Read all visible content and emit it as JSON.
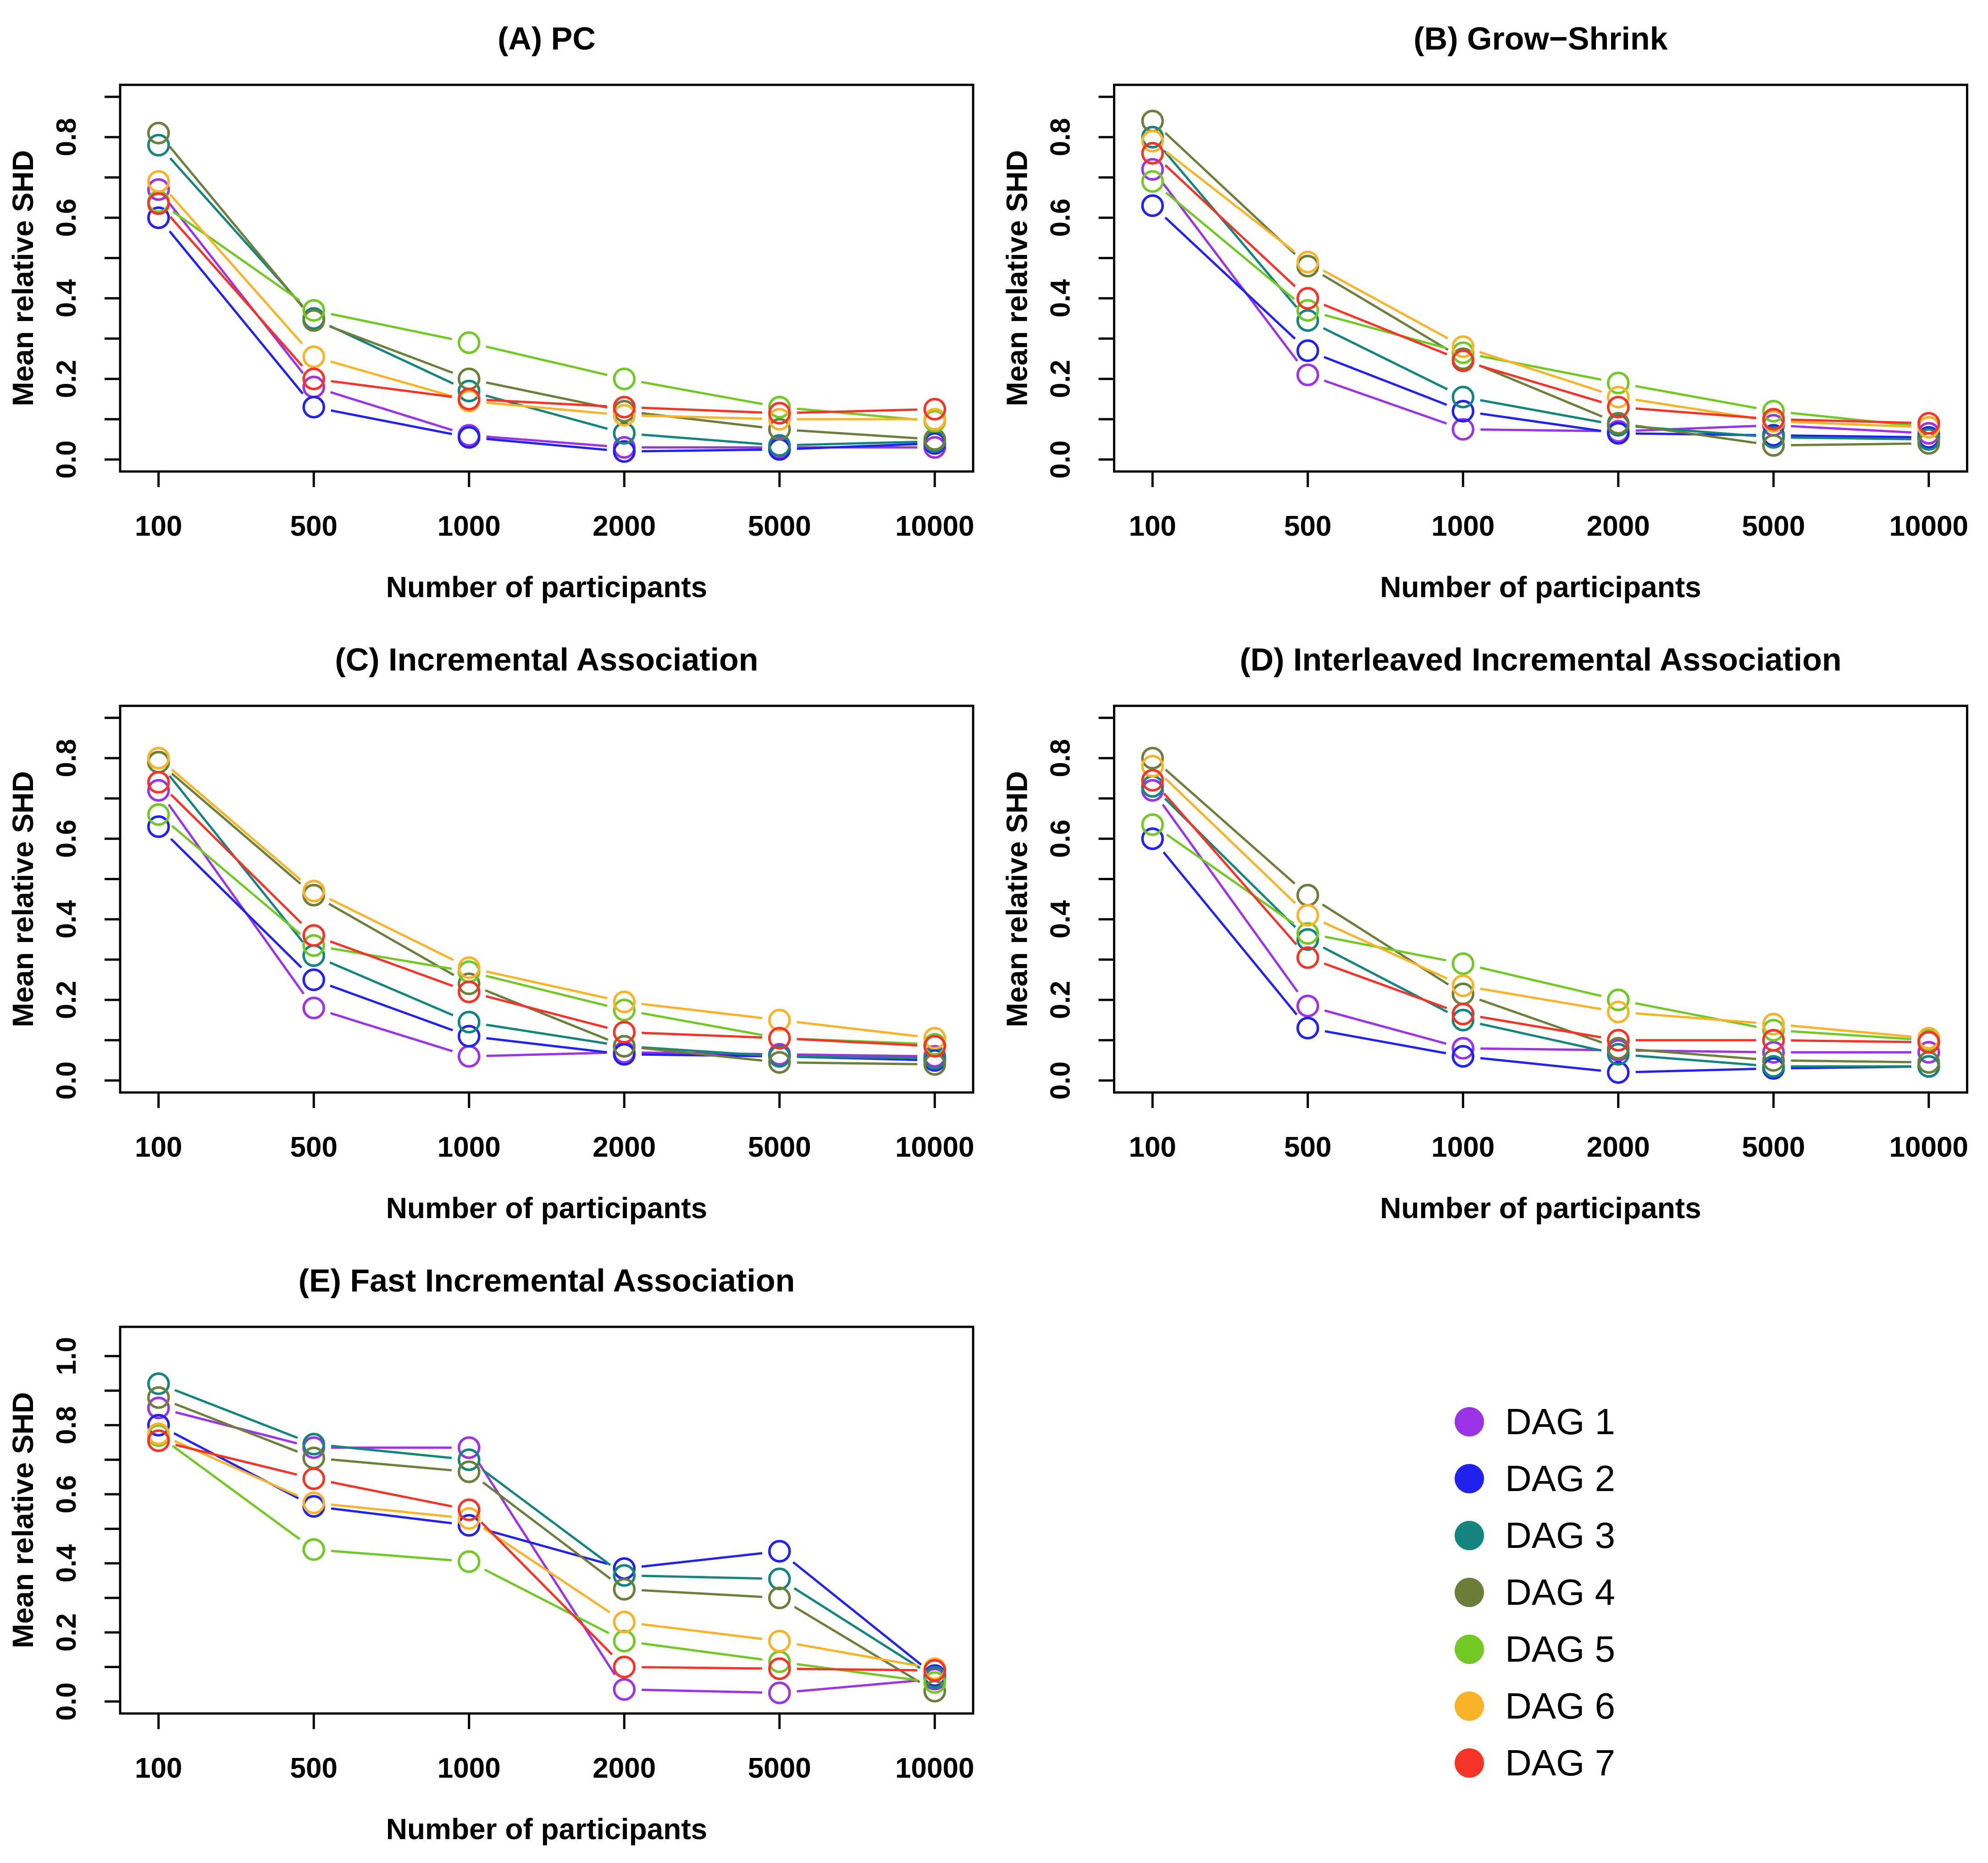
{
  "figure": {
    "xlabel": "Number of participants",
    "ylabel": "Mean relative SHD",
    "x_categories": [
      "100",
      "500",
      "1000",
      "2000",
      "5000",
      "10000"
    ],
    "legend": {
      "position": "bottom-right-cell",
      "entries": [
        {
          "label": "DAG 1",
          "color": "#9C33E6"
        },
        {
          "label": "DAG 2",
          "color": "#2222EE"
        },
        {
          "label": "DAG 3",
          "color": "#13847E"
        },
        {
          "label": "DAG 4",
          "color": "#6B7F3B"
        },
        {
          "label": "DAG 5",
          "color": "#72C926"
        },
        {
          "label": "DAG 6",
          "color": "#F9B32A"
        },
        {
          "label": "DAG 7",
          "color": "#F53427"
        }
      ]
    }
  },
  "chart_data": [
    {
      "type": "line",
      "panel": "A",
      "title": "(A) PC",
      "xlabel": "Number of participants",
      "ylabel": "Mean relative SHD",
      "categories": [
        "100",
        "500",
        "1000",
        "2000",
        "5000",
        "10000"
      ],
      "ylim": [
        0,
        0.9
      ],
      "yticks": [
        0.0,
        0.2,
        0.4,
        0.6,
        0.8
      ],
      "grid": false,
      "marker": "open-circle",
      "series": [
        {
          "name": "DAG 1",
          "color": "#9C33E6",
          "values": [
            0.67,
            0.18,
            0.06,
            0.03,
            0.03,
            0.03
          ]
        },
        {
          "name": "DAG 2",
          "color": "#2222EE",
          "values": [
            0.6,
            0.13,
            0.055,
            0.02,
            0.025,
            0.04
          ]
        },
        {
          "name": "DAG 3",
          "color": "#13847E",
          "values": [
            0.78,
            0.35,
            0.17,
            0.065,
            0.035,
            0.045
          ]
        },
        {
          "name": "DAG 4",
          "color": "#6B7F3B",
          "values": [
            0.81,
            0.345,
            0.2,
            0.12,
            0.075,
            0.05
          ]
        },
        {
          "name": "DAG 5",
          "color": "#72C926",
          "values": [
            0.64,
            0.37,
            0.29,
            0.2,
            0.13,
            0.095
          ]
        },
        {
          "name": "DAG 6",
          "color": "#F9B32A",
          "values": [
            0.69,
            0.255,
            0.145,
            0.11,
            0.1,
            0.1
          ]
        },
        {
          "name": "DAG 7",
          "color": "#F53427",
          "values": [
            0.635,
            0.2,
            0.15,
            0.13,
            0.115,
            0.125
          ]
        }
      ]
    },
    {
      "type": "line",
      "panel": "B",
      "title": "(B) Grow−Shrink",
      "xlabel": "Number of participants",
      "ylabel": "Mean relative SHD",
      "categories": [
        "100",
        "500",
        "1000",
        "2000",
        "5000",
        "10000"
      ],
      "ylim": [
        0,
        0.9
      ],
      "yticks": [
        0.0,
        0.2,
        0.4,
        0.6,
        0.8
      ],
      "grid": false,
      "marker": "open-circle",
      "series": [
        {
          "name": "DAG 1",
          "color": "#9C33E6",
          "values": [
            0.72,
            0.21,
            0.075,
            0.07,
            0.085,
            0.065
          ]
        },
        {
          "name": "DAG 2",
          "color": "#2222EE",
          "values": [
            0.63,
            0.27,
            0.12,
            0.065,
            0.06,
            0.055
          ]
        },
        {
          "name": "DAG 3",
          "color": "#13847E",
          "values": [
            0.8,
            0.345,
            0.155,
            0.085,
            0.055,
            0.05
          ]
        },
        {
          "name": "DAG 4",
          "color": "#6B7F3B",
          "values": [
            0.84,
            0.48,
            0.25,
            0.09,
            0.035,
            0.04
          ]
        },
        {
          "name": "DAG 5",
          "color": "#72C926",
          "values": [
            0.69,
            0.37,
            0.265,
            0.19,
            0.12,
            0.08
          ]
        },
        {
          "name": "DAG 6",
          "color": "#F9B32A",
          "values": [
            0.79,
            0.49,
            0.28,
            0.155,
            0.095,
            0.08
          ]
        },
        {
          "name": "DAG 7",
          "color": "#F53427",
          "values": [
            0.76,
            0.4,
            0.245,
            0.13,
            0.1,
            0.09
          ]
        }
      ]
    },
    {
      "type": "line",
      "panel": "C",
      "title": "(C) Incremental Association",
      "xlabel": "Number of participants",
      "ylabel": "Mean relative SHD",
      "categories": [
        "100",
        "500",
        "1000",
        "2000",
        "5000",
        "10000"
      ],
      "ylim": [
        0,
        0.9
      ],
      "yticks": [
        0.0,
        0.2,
        0.4,
        0.6,
        0.8
      ],
      "grid": false,
      "marker": "open-circle",
      "series": [
        {
          "name": "DAG 1",
          "color": "#9C33E6",
          "values": [
            0.72,
            0.18,
            0.06,
            0.07,
            0.065,
            0.06
          ]
        },
        {
          "name": "DAG 2",
          "color": "#2222EE",
          "values": [
            0.63,
            0.25,
            0.11,
            0.065,
            0.06,
            0.05
          ]
        },
        {
          "name": "DAG 3",
          "color": "#13847E",
          "values": [
            0.79,
            0.31,
            0.145,
            0.085,
            0.06,
            0.055
          ]
        },
        {
          "name": "DAG 4",
          "color": "#6B7F3B",
          "values": [
            0.79,
            0.46,
            0.24,
            0.085,
            0.045,
            0.04
          ]
        },
        {
          "name": "DAG 5",
          "color": "#72C926",
          "values": [
            0.66,
            0.335,
            0.27,
            0.175,
            0.105,
            0.09
          ]
        },
        {
          "name": "DAG 6",
          "color": "#F9B32A",
          "values": [
            0.8,
            0.47,
            0.28,
            0.195,
            0.15,
            0.105
          ]
        },
        {
          "name": "DAG 7",
          "color": "#F53427",
          "values": [
            0.74,
            0.36,
            0.22,
            0.12,
            0.105,
            0.085
          ]
        }
      ]
    },
    {
      "type": "line",
      "panel": "D",
      "title": "(D) Interleaved Incremental Association",
      "xlabel": "Number of participants",
      "ylabel": "Mean relative SHD",
      "categories": [
        "100",
        "500",
        "1000",
        "2000",
        "5000",
        "10000"
      ],
      "ylim": [
        0,
        0.9
      ],
      "yticks": [
        0.0,
        0.2,
        0.4,
        0.6,
        0.8
      ],
      "grid": false,
      "marker": "open-circle",
      "series": [
        {
          "name": "DAG 1",
          "color": "#9C33E6",
          "values": [
            0.72,
            0.185,
            0.08,
            0.075,
            0.07,
            0.07
          ]
        },
        {
          "name": "DAG 2",
          "color": "#2222EE",
          "values": [
            0.6,
            0.13,
            0.06,
            0.02,
            0.03,
            0.035
          ]
        },
        {
          "name": "DAG 3",
          "color": "#13847E",
          "values": [
            0.73,
            0.35,
            0.15,
            0.065,
            0.035,
            0.035
          ]
        },
        {
          "name": "DAG 4",
          "color": "#6B7F3B",
          "values": [
            0.8,
            0.46,
            0.215,
            0.08,
            0.05,
            0.045
          ]
        },
        {
          "name": "DAG 5",
          "color": "#72C926",
          "values": [
            0.635,
            0.365,
            0.29,
            0.2,
            0.125,
            0.1
          ]
        },
        {
          "name": "DAG 6",
          "color": "#F9B32A",
          "values": [
            0.78,
            0.41,
            0.235,
            0.17,
            0.14,
            0.105
          ]
        },
        {
          "name": "DAG 7",
          "color": "#F53427",
          "values": [
            0.745,
            0.305,
            0.165,
            0.1,
            0.1,
            0.095
          ]
        }
      ]
    },
    {
      "type": "line",
      "panel": "E",
      "title": "(E) Fast Incremental Association",
      "xlabel": "Number of participants",
      "ylabel": "Mean relative SHD",
      "categories": [
        "100",
        "500",
        "1000",
        "2000",
        "5000",
        "10000"
      ],
      "ylim": [
        0,
        1.05
      ],
      "yticks": [
        0.0,
        0.2,
        0.4,
        0.6,
        0.8,
        1.0
      ],
      "grid": false,
      "marker": "open-circle",
      "series": [
        {
          "name": "DAG 1",
          "color": "#9C33E6",
          "values": [
            0.85,
            0.735,
            0.735,
            0.035,
            0.025,
            0.065
          ]
        },
        {
          "name": "DAG 2",
          "color": "#2222EE",
          "values": [
            0.8,
            0.565,
            0.51,
            0.385,
            0.435,
            0.075
          ]
        },
        {
          "name": "DAG 3",
          "color": "#13847E",
          "values": [
            0.92,
            0.745,
            0.7,
            0.365,
            0.355,
            0.07
          ]
        },
        {
          "name": "DAG 4",
          "color": "#6B7F3B",
          "values": [
            0.88,
            0.705,
            0.665,
            0.325,
            0.3,
            0.03
          ]
        },
        {
          "name": "DAG 5",
          "color": "#72C926",
          "values": [
            0.77,
            0.44,
            0.405,
            0.175,
            0.115,
            0.055
          ]
        },
        {
          "name": "DAG 6",
          "color": "#F9B32A",
          "values": [
            0.775,
            0.575,
            0.53,
            0.23,
            0.175,
            0.095
          ]
        },
        {
          "name": "DAG 7",
          "color": "#F53427",
          "values": [
            0.755,
            0.645,
            0.555,
            0.1,
            0.095,
            0.09
          ]
        }
      ]
    }
  ]
}
